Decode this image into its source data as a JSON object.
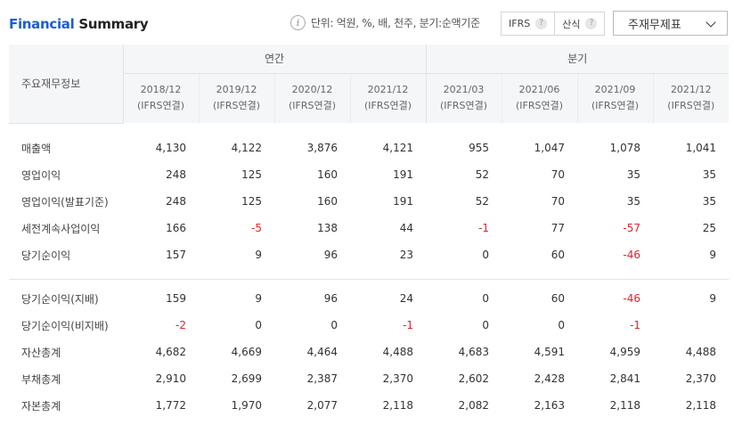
{
  "header": {
    "title_accent": "Financial",
    "title_rest": "Summary",
    "unit_text": "단위: 억원, %, 배, 천주, 분기:순액기준",
    "buttons": [
      {
        "label": "IFRS"
      },
      {
        "label": "산식"
      }
    ],
    "select_value": "주재무제표"
  },
  "table": {
    "label_header": "주요재무정보",
    "group_annual": "연간",
    "group_quarter": "분기",
    "columns": [
      {
        "period": "2018/12",
        "basis": "(IFRS연결)"
      },
      {
        "period": "2019/12",
        "basis": "(IFRS연결)"
      },
      {
        "period": "2020/12",
        "basis": "(IFRS연결)"
      },
      {
        "period": "2021/12",
        "basis": "(IFRS연결)"
      },
      {
        "period": "2021/03",
        "basis": "(IFRS연결)"
      },
      {
        "period": "2021/06",
        "basis": "(IFRS연결)"
      },
      {
        "period": "2021/09",
        "basis": "(IFRS연결)"
      },
      {
        "period": "2021/12",
        "basis": "(IFRS연결)"
      }
    ],
    "rows_a": [
      {
        "label": "매출액",
        "values": [
          "4,130",
          "4,122",
          "3,876",
          "4,121",
          "955",
          "1,047",
          "1,078",
          "1,041"
        ]
      },
      {
        "label": "영업이익",
        "values": [
          "248",
          "125",
          "160",
          "191",
          "52",
          "70",
          "35",
          "35"
        ]
      },
      {
        "label": "영업이익(발표기준)",
        "values": [
          "248",
          "125",
          "160",
          "191",
          "52",
          "70",
          "35",
          "35"
        ]
      },
      {
        "label": "세전계속사업이익",
        "values": [
          "166",
          "-5",
          "138",
          "44",
          "-1",
          "77",
          "-57",
          "25"
        ]
      },
      {
        "label": "당기순이익",
        "values": [
          "157",
          "9",
          "96",
          "23",
          "0",
          "60",
          "-46",
          "9"
        ]
      }
    ],
    "rows_b": [
      {
        "label": "당기순이익(지배)",
        "values": [
          "159",
          "9",
          "96",
          "24",
          "0",
          "60",
          "-46",
          "9"
        ]
      },
      {
        "label": "당기순이익(비지배)",
        "values": [
          "-2",
          "0",
          "0",
          "-1",
          "0",
          "0",
          "-1",
          ""
        ]
      },
      {
        "label": "자산총계",
        "values": [
          "4,682",
          "4,669",
          "4,464",
          "4,488",
          "4,683",
          "4,591",
          "4,959",
          "4,488"
        ]
      },
      {
        "label": "부채총계",
        "values": [
          "2,910",
          "2,699",
          "2,387",
          "2,370",
          "2,602",
          "2,428",
          "2,841",
          "2,370"
        ]
      },
      {
        "label": "자본총계",
        "values": [
          "1,772",
          "1,970",
          "2,077",
          "2,118",
          "2,082",
          "2,163",
          "2,118",
          "2,118"
        ]
      }
    ],
    "negative_color": "#e0242e"
  }
}
